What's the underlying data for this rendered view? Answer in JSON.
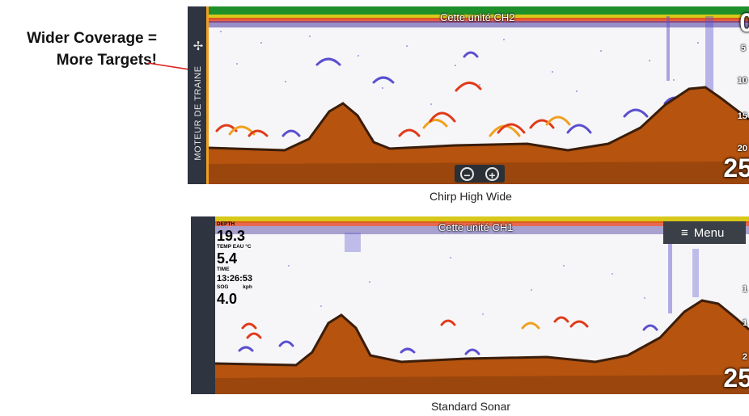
{
  "callout": {
    "line1": "Wider Coverage =",
    "line2": "More Targets!"
  },
  "top": {
    "side_label": "MOTEUR DE TRAINE",
    "channel": "Cette unité CH2",
    "depth_value": "25",
    "depth_top": "0",
    "scale_ticks": [
      "5",
      "10",
      "15",
      "20"
    ],
    "caption": "Chirp High Wide",
    "zoom": {
      "out_symbol": "−",
      "in_symbol": "+"
    }
  },
  "bottom": {
    "channel": "Cette unité CH1",
    "menu_label": "Menu",
    "depth_value": "25",
    "depth_top": "0",
    "scale_ticks": [
      "1",
      "1",
      "2"
    ],
    "caption": "Standard Sonar",
    "data": {
      "depth_label": "DEPTH",
      "depth": "19.3",
      "temp_label": "TEMP EAU °C",
      "temp": "5.4",
      "time_label": "TIME",
      "time": "13:26:53",
      "sog_label": "SOG",
      "sog_unit": "kph",
      "sog": "4.0"
    }
  },
  "colors": {
    "bottom_fill": "#b5530f",
    "surface_line": "#2ea02e",
    "accent": "#f0a020",
    "callout_line": "#e02020"
  },
  "icons": {
    "propeller": "propeller-icon",
    "menu": "hamburger-icon",
    "zoom_out": "zoom-out-icon",
    "zoom_in": "zoom-in-icon"
  }
}
